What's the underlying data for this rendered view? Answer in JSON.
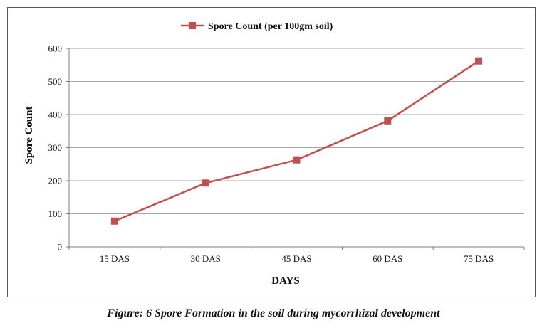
{
  "chart_data": {
    "type": "line",
    "categories": [
      "15 DAS",
      "30 DAS",
      "45 DAS",
      "60 DAS",
      "75 DAS"
    ],
    "series": [
      {
        "name": "Spore Count (per 100gm soil)",
        "values": [
          78,
          193,
          263,
          381,
          562
        ],
        "color": "#c0504d",
        "marker": "square"
      }
    ],
    "xlabel": "DAYS",
    "ylabel": "Spore Count",
    "ylim": [
      0,
      600
    ],
    "yticks": [
      0,
      100,
      200,
      300,
      400,
      500,
      600
    ],
    "grid": true,
    "legend_position": "top-center"
  },
  "caption": "Figure: 6 Spore Formation in the soil during mycorrhizal development"
}
